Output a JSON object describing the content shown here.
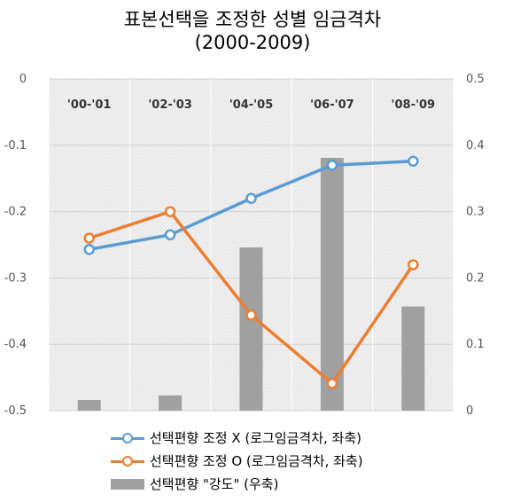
{
  "chart_data": {
    "type": "bar+line",
    "title": "표본선택을 조정한 성별 임금격차",
    "subtitle": "(2000-2009)",
    "categories": [
      "'00-'01",
      "'02-'03",
      "'04-'05",
      "'06-'07",
      "'08-'09"
    ],
    "left_axis": {
      "ylim": [
        -0.5,
        0
      ],
      "ticks": [
        "0",
        "-0.1",
        "-0.2",
        "-0.3",
        "-0.4",
        "-0.5"
      ],
      "tick_values": [
        0,
        -0.1,
        -0.2,
        -0.3,
        -0.4,
        -0.5
      ]
    },
    "right_axis": {
      "ylim": [
        0,
        0.5
      ],
      "ticks": [
        "0.5",
        "0.4",
        "0.3",
        "0.2",
        "0.1",
        "0"
      ],
      "tick_values": [
        0.5,
        0.4,
        0.3,
        0.2,
        0.1,
        0
      ]
    },
    "series": [
      {
        "name": "선택편향 조정 X (로그임금격차, 좌축)",
        "type": "line",
        "axis": "left",
        "color": "#5b9bd5",
        "values": [
          -0.257,
          -0.235,
          -0.18,
          -0.13,
          -0.124
        ]
      },
      {
        "name": "선택편향 조정 O (로그임금격차, 좌축)",
        "type": "line",
        "axis": "left",
        "color": "#ed7d31",
        "values": [
          -0.24,
          -0.2,
          -0.356,
          -0.459,
          -0.28
        ]
      },
      {
        "name": "선택편향 \"강도\" (우축)",
        "type": "bar",
        "axis": "right",
        "color": "#a0a0a0",
        "values": [
          0.016,
          0.023,
          0.246,
          0.381,
          0.157
        ]
      }
    ],
    "grid": true,
    "legend_position": "bottom"
  },
  "legend": {
    "items": [
      "선택편향 조정 X (로그임금격차, 좌축)",
      "선택편향 조정 O (로그임금격차, 좌축)",
      "선택편향 \"강도\" (우축)"
    ]
  }
}
